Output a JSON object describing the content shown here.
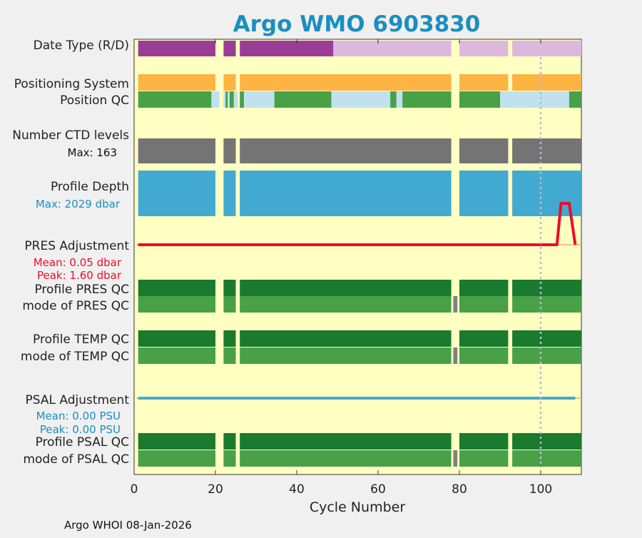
{
  "chart_data": {
    "type": "bar",
    "title": "Argo WMO 6903830",
    "xlabel": "Cycle Number",
    "xlim": [
      0,
      110
    ],
    "xticks": [
      "0",
      "20",
      "40",
      "60",
      "80",
      "100"
    ],
    "footer": "Argo WHOI 08-Jan-2026",
    "rows": {
      "date_type": "Date Type (R/D)",
      "positioning": "Positioning System",
      "position_qc": "Position QC",
      "ctd_levels": "Number CTD levels",
      "ctd_max": "Max: 163",
      "profile_depth": "Profile Depth",
      "depth_max": "Max: 2029 dbar",
      "pres_adj": "PRES Adjustment",
      "pres_mean": "Mean: 0.05 dbar",
      "pres_peak": "Peak: 1.60 dbar",
      "profile_pres_qc": "Profile PRES QC",
      "mode_pres_qc": "mode of PRES QC",
      "profile_temp_qc": "Profile TEMP QC",
      "mode_temp_qc": "mode of TEMP QC",
      "psal_adj": "PSAL Adjustment",
      "psal_mean": "Mean: 0.00 PSU",
      "psal_peak": "Peak: 0.00 PSU",
      "profile_psal_qc": "Profile PSAL QC",
      "mode_psal_qc": "mode of PSAL QC"
    },
    "cycle_segments": [
      [
        1,
        20
      ],
      [
        22,
        25
      ],
      [
        26,
        78
      ],
      [
        80,
        92
      ],
      [
        93,
        110
      ]
    ],
    "reference_cycle": 100,
    "date_type": {
      "realtime_range": [
        49,
        110
      ],
      "colors": {
        "delayed": "#9b3d96",
        "realtime": "#dcb9dc"
      }
    },
    "position_qc_light": [
      [
        19,
        21
      ],
      [
        22,
        22.5
      ],
      [
        23,
        23.5
      ],
      [
        24.5,
        25.5
      ],
      [
        27,
        34.5
      ],
      [
        48.5,
        63
      ],
      [
        64.5,
        66
      ],
      [
        90,
        107
      ]
    ],
    "ctd_levels_max": 163,
    "profile_depth_max_dbar": 2029,
    "pres_adjustment": {
      "mean": 0.05,
      "peak": 1.6,
      "x": [
        1,
        104,
        105,
        106,
        107,
        108.5
      ],
      "y": [
        0,
        0,
        1.6,
        1.6,
        1.6,
        0
      ]
    },
    "psal_adjustment": {
      "mean": 0.0,
      "peak": 0.0
    },
    "mode_qc_grey_cycle": 79,
    "colors": {
      "background": "#ffffc2",
      "position_system": "#fdb443",
      "qc_good": "#1a7a2e",
      "qc_mode": "#48a047",
      "qc_light": "#c1e1ee",
      "ctd": "#747474",
      "depth": "#42aad1",
      "pres_line": "#ee0c2a",
      "psal_line": "#42aad1",
      "title": "#1a8fbf"
    }
  }
}
